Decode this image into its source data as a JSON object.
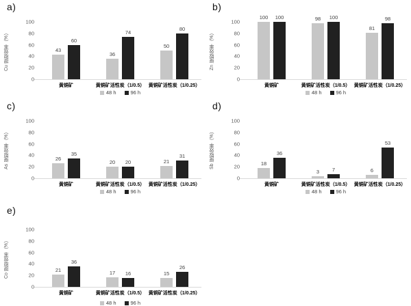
{
  "figure": {
    "type": "multi-panel bar figure",
    "panels_order": [
      "a)",
      "b)",
      "c)",
      "d)",
      "e)"
    ],
    "colors": {
      "series_48h": "#c6c6c6",
      "series_96h": "#212121",
      "axis_line": "#d9d9d9",
      "tick_text": "#595959",
      "value_text": "#404040",
      "category_text": "#000000"
    }
  },
  "chart_data": [
    {
      "type": "bar",
      "panel": "a)",
      "ylabel": "Cu 提取效率（%）",
      "categories": [
        "黄铜矿",
        "黄铜矿活性炭（1/0.5）",
        "黄铜矿活性炭（1/0.25）"
      ],
      "series": [
        {
          "name": "48 h",
          "color": "#c6c6c6",
          "values": [
            43,
            36,
            50
          ]
        },
        {
          "name": "96 h",
          "color": "#212121",
          "values": [
            60,
            74,
            80
          ]
        }
      ],
      "ylim": [
        0,
        100
      ],
      "yticks": [
        0,
        20,
        40,
        60,
        80,
        100
      ],
      "grid": false,
      "legend_position": "bottom"
    },
    {
      "type": "bar",
      "panel": "b)",
      "ylabel": "Zn 提取效率（%）",
      "categories": [
        "黄铜矿",
        "黄铜矿活性炭（1/0.5）",
        "黄铜矿活性炭（1/0.25）"
      ],
      "series": [
        {
          "name": "48 h",
          "color": "#c6c6c6",
          "values": [
            100,
            98,
            81
          ]
        },
        {
          "name": "96 h",
          "color": "#212121",
          "values": [
            100,
            100,
            98
          ]
        }
      ],
      "ylim": [
        0,
        100
      ],
      "yticks": [
        0,
        20,
        40,
        60,
        80,
        100
      ],
      "grid": false,
      "legend_position": "bottom"
    },
    {
      "type": "bar",
      "panel": "c)",
      "ylabel": "As 提取效率（%）",
      "categories": [
        "黄铜矿",
        "黄铜矿活性炭（1/0.5）",
        "黄铜矿活性炭（1/0.25）"
      ],
      "series": [
        {
          "name": "48 h",
          "color": "#c6c6c6",
          "values": [
            26,
            20,
            21
          ]
        },
        {
          "name": "96 h",
          "color": "#212121",
          "values": [
            35,
            20,
            31
          ]
        }
      ],
      "ylim": [
        0,
        100
      ],
      "yticks": [
        0,
        20,
        40,
        60,
        80,
        100
      ],
      "grid": false,
      "legend_position": "bottom"
    },
    {
      "type": "bar",
      "panel": "d)",
      "ylabel": "Sb 提取效率（%）",
      "categories": [
        "黄铜矿",
        "黄铜矿活性炭（1/0.5）",
        "黄铜矿活性炭（1/0.25）"
      ],
      "series": [
        {
          "name": "48 h",
          "color": "#c6c6c6",
          "values": [
            18,
            3,
            6
          ]
        },
        {
          "name": "96 h",
          "color": "#212121",
          "values": [
            36,
            7,
            53
          ]
        }
      ],
      "ylim": [
        0,
        100
      ],
      "yticks": [
        0,
        20,
        40,
        60,
        80,
        100
      ],
      "grid": false,
      "legend_position": "bottom"
    },
    {
      "type": "bar",
      "panel": "e)",
      "ylabel": "Co 提取效率（%）",
      "categories": [
        "黄铜矿",
        "黄铜矿活性炭（1/0.5）",
        "黄铜矿活性炭（1/0.25）"
      ],
      "series": [
        {
          "name": "48 h",
          "color": "#c6c6c6",
          "values": [
            21,
            17,
            15
          ]
        },
        {
          "name": "96 h",
          "color": "#212121",
          "values": [
            36,
            16,
            26
          ]
        }
      ],
      "ylim": [
        0,
        100
      ],
      "yticks": [
        0,
        20,
        40,
        60,
        80,
        100
      ],
      "grid": false,
      "legend_position": "bottom"
    }
  ]
}
